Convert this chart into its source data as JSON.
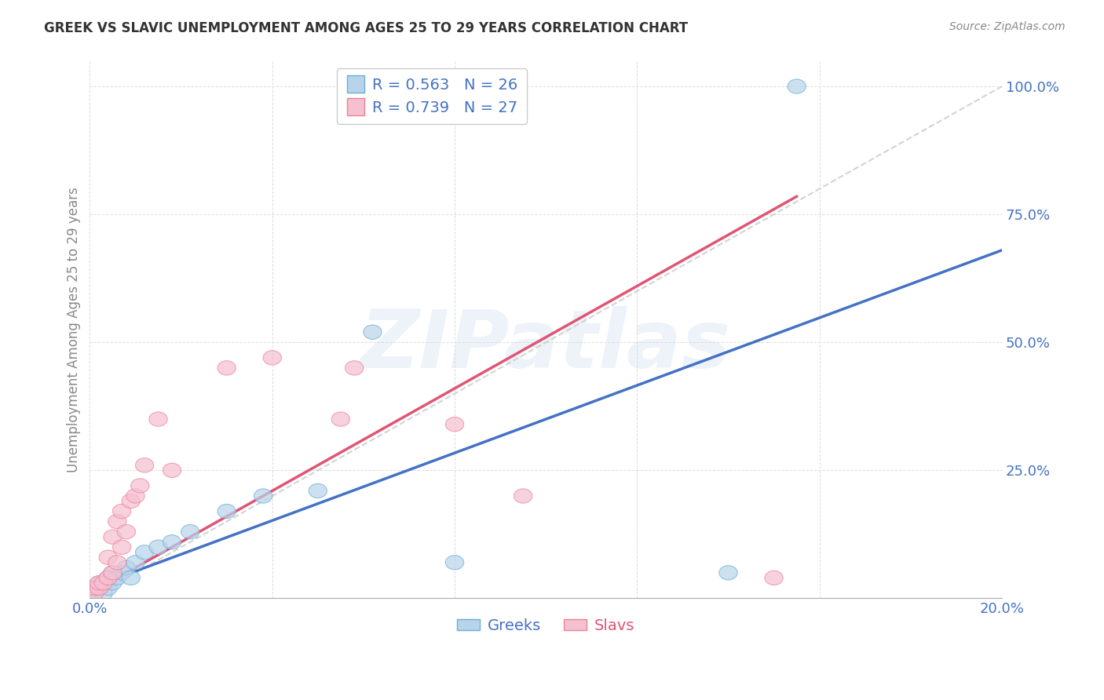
{
  "title": "GREEK VS SLAVIC UNEMPLOYMENT AMONG AGES 25 TO 29 YEARS CORRELATION CHART",
  "source": "Source: ZipAtlas.com",
  "ylabel": "Unemployment Among Ages 25 to 29 years",
  "watermark": "ZIPatlas",
  "legend_blue": "R = 0.563   N = 26",
  "legend_pink": "R = 0.739   N = 27",
  "blue_face": "#b8d4eb",
  "pink_face": "#f5c0d0",
  "blue_edge": "#6aaed6",
  "pink_edge": "#f08098",
  "blue_line": "#4472c4",
  "pink_line": "#e05575",
  "blue_label": "Greeks",
  "pink_label": "Slavs",
  "ref_line_color": "#cccccc",
  "xlim": [
    0.0,
    0.2
  ],
  "ylim": [
    0.0,
    1.05
  ],
  "greeks_x": [
    0.001,
    0.001,
    0.002,
    0.002,
    0.003,
    0.003,
    0.004,
    0.004,
    0.005,
    0.005,
    0.006,
    0.007,
    0.008,
    0.009,
    0.01,
    0.012,
    0.015,
    0.018,
    0.022,
    0.03,
    0.038,
    0.05,
    0.062,
    0.08,
    0.14,
    0.155
  ],
  "greeks_y": [
    0.01,
    0.02,
    0.02,
    0.03,
    0.01,
    0.03,
    0.02,
    0.04,
    0.03,
    0.05,
    0.04,
    0.05,
    0.06,
    0.04,
    0.07,
    0.09,
    0.1,
    0.11,
    0.13,
    0.17,
    0.2,
    0.21,
    0.52,
    0.07,
    0.05,
    1.0
  ],
  "slavs_x": [
    0.001,
    0.001,
    0.002,
    0.002,
    0.003,
    0.004,
    0.004,
    0.005,
    0.005,
    0.006,
    0.006,
    0.007,
    0.007,
    0.008,
    0.009,
    0.01,
    0.011,
    0.012,
    0.015,
    0.018,
    0.03,
    0.04,
    0.055,
    0.058,
    0.08,
    0.095,
    0.15
  ],
  "slavs_y": [
    0.01,
    0.02,
    0.02,
    0.03,
    0.03,
    0.04,
    0.08,
    0.05,
    0.12,
    0.07,
    0.15,
    0.1,
    0.17,
    0.13,
    0.19,
    0.2,
    0.22,
    0.26,
    0.35,
    0.25,
    0.45,
    0.47,
    0.35,
    0.45,
    0.34,
    0.2,
    0.04
  ],
  "blue_regression_slope": 3.3,
  "blue_regression_intercept": 0.02,
  "pink_regression_slope": 5.0,
  "pink_regression_intercept": 0.01
}
